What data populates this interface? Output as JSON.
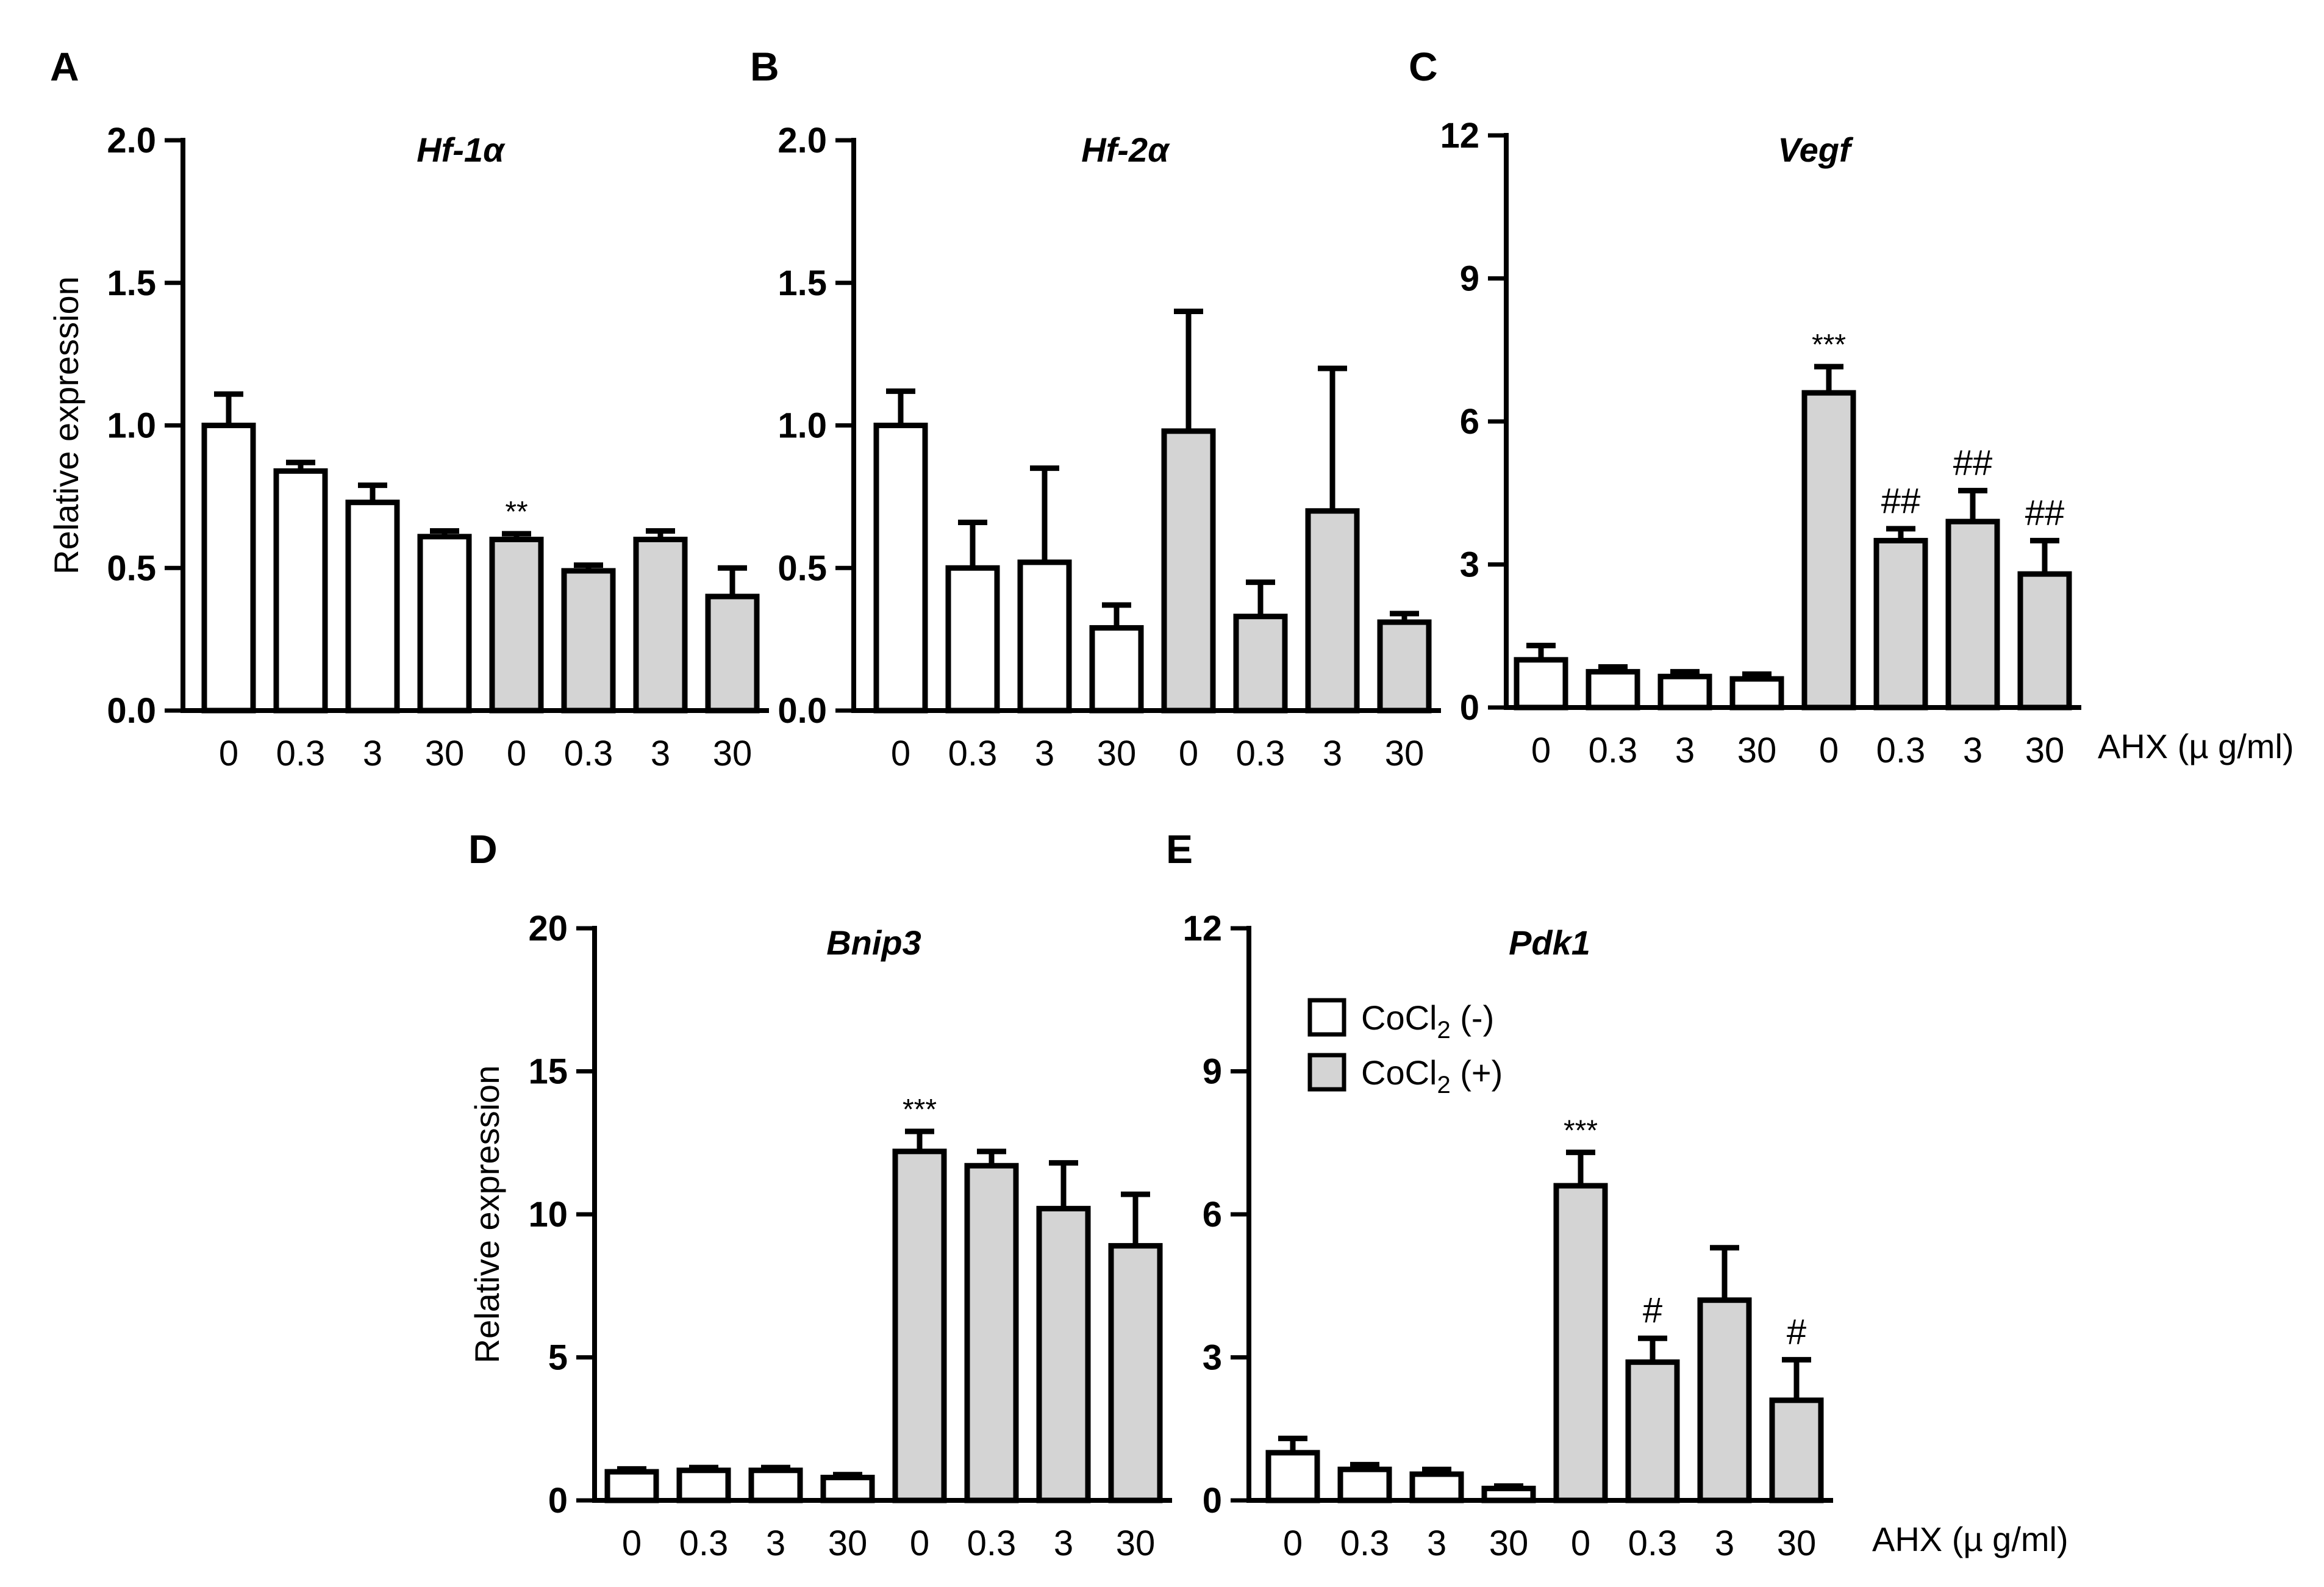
{
  "colors": {
    "open_bar": "#ffffff",
    "gray_bar": "#d4d4d4",
    "stroke": "#000000"
  },
  "legend": {
    "items": [
      {
        "label": "CoCl",
        "sub": "2",
        "suffix": " (-)",
        "color": "#ffffff"
      },
      {
        "label": "CoCl",
        "sub": "2",
        "suffix": " (+)",
        "color": "#d4d4d4"
      }
    ]
  },
  "x_unit_label": "AHX (µ g/ml)",
  "chart_data": [
    {
      "panel": "A",
      "type": "bar",
      "title": "Hf-1α",
      "ylabel": "Relative expression",
      "ylim": [
        0,
        2.0
      ],
      "yticks": [
        "0.0",
        "0.5",
        "1.0",
        "1.5",
        "2.0"
      ],
      "categories": [
        "0",
        "0.3",
        "3",
        "30",
        "0",
        "0.3",
        "3",
        "30"
      ],
      "groups": [
        "CoCl2 (-)",
        "CoCl2 (-)",
        "CoCl2 (-)",
        "CoCl2 (-)",
        "CoCl2 (+)",
        "CoCl2 (+)",
        "CoCl2 (+)",
        "CoCl2 (+)"
      ],
      "values": [
        1.0,
        0.84,
        0.73,
        0.61,
        0.6,
        0.49,
        0.6,
        0.4
      ],
      "errors": [
        0.11,
        0.03,
        0.06,
        0.02,
        0.02,
        0.02,
        0.03,
        0.1
      ],
      "annotations": [
        "",
        "",
        "",
        "",
        "**",
        "",
        "",
        ""
      ]
    },
    {
      "panel": "B",
      "type": "bar",
      "title": "Hf-2α",
      "ylabel": "",
      "ylim": [
        0,
        2.0
      ],
      "yticks": [
        "0.0",
        "0.5",
        "1.0",
        "1.5",
        "2.0"
      ],
      "categories": [
        "0",
        "0.3",
        "3",
        "30",
        "0",
        "0.3",
        "3",
        "30"
      ],
      "groups": [
        "CoCl2 (-)",
        "CoCl2 (-)",
        "CoCl2 (-)",
        "CoCl2 (-)",
        "CoCl2 (+)",
        "CoCl2 (+)",
        "CoCl2 (+)",
        "CoCl2 (+)"
      ],
      "values": [
        1.0,
        0.5,
        0.52,
        0.29,
        0.98,
        0.33,
        0.7,
        0.31
      ],
      "errors": [
        0.12,
        0.16,
        0.33,
        0.08,
        0.42,
        0.12,
        0.5,
        0.03
      ],
      "annotations": [
        "",
        "",
        "",
        "",
        "",
        "",
        "",
        ""
      ]
    },
    {
      "panel": "C",
      "type": "bar",
      "title": "Vegf",
      "ylabel": "",
      "ylim": [
        0,
        12
      ],
      "yticks": [
        "0",
        "3",
        "6",
        "9",
        "12"
      ],
      "categories": [
        "0",
        "0.3",
        "3",
        "30",
        "0",
        "0.3",
        "3",
        "30"
      ],
      "groups": [
        "CoCl2 (-)",
        "CoCl2 (-)",
        "CoCl2 (-)",
        "CoCl2 (-)",
        "CoCl2 (+)",
        "CoCl2 (+)",
        "CoCl2 (+)",
        "CoCl2 (+)"
      ],
      "values": [
        1.0,
        0.75,
        0.65,
        0.6,
        6.6,
        3.5,
        3.9,
        2.8
      ],
      "errors": [
        0.3,
        0.1,
        0.1,
        0.1,
        0.55,
        0.25,
        0.65,
        0.7
      ],
      "annotations": [
        "",
        "",
        "",
        "",
        "***",
        "##",
        "##",
        "##"
      ]
    },
    {
      "panel": "D",
      "type": "bar",
      "title": "Bnip3",
      "ylabel": "Relative expression",
      "ylim": [
        0,
        20
      ],
      "yticks": [
        "0",
        "5",
        "10",
        "15",
        "20"
      ],
      "categories": [
        "0",
        "0.3",
        "3",
        "30",
        "0",
        "0.3",
        "3",
        "30"
      ],
      "groups": [
        "CoCl2 (-)",
        "CoCl2 (-)",
        "CoCl2 (-)",
        "CoCl2 (-)",
        "CoCl2 (+)",
        "CoCl2 (+)",
        "CoCl2 (+)",
        "CoCl2 (+)"
      ],
      "values": [
        1.0,
        1.05,
        1.05,
        0.8,
        12.2,
        11.7,
        10.2,
        8.9
      ],
      "errors": [
        0.1,
        0.1,
        0.1,
        0.1,
        0.7,
        0.5,
        1.6,
        1.8
      ],
      "annotations": [
        "",
        "",
        "",
        "",
        "***",
        "",
        "",
        ""
      ]
    },
    {
      "panel": "E",
      "type": "bar",
      "title": "Pdk1",
      "ylabel": "",
      "ylim": [
        0,
        12
      ],
      "yticks": [
        "0",
        "3",
        "6",
        "9",
        "12"
      ],
      "categories": [
        "0",
        "0.3",
        "3",
        "30",
        "0",
        "0.3",
        "3",
        "30"
      ],
      "groups": [
        "CoCl2 (-)",
        "CoCl2 (-)",
        "CoCl2 (-)",
        "CoCl2 (-)",
        "CoCl2 (+)",
        "CoCl2 (+)",
        "CoCl2 (+)",
        "CoCl2 (+)"
      ],
      "values": [
        1.0,
        0.65,
        0.55,
        0.25,
        6.6,
        2.9,
        4.2,
        2.1
      ],
      "errors": [
        0.3,
        0.1,
        0.1,
        0.05,
        0.7,
        0.5,
        1.1,
        0.85
      ],
      "annotations": [
        "",
        "",
        "",
        "",
        "***",
        "#",
        "",
        "#"
      ]
    }
  ]
}
